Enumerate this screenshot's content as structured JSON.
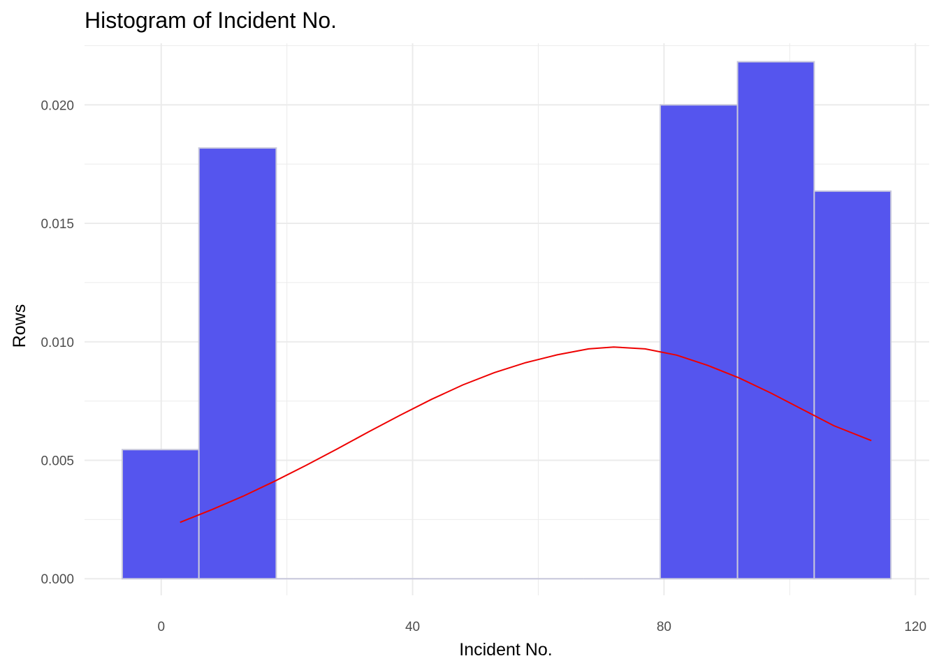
{
  "chart_data": {
    "type": "bar",
    "title": "Histogram of Incident No.",
    "xlabel": "Incident No.",
    "ylabel": "Rows",
    "xlim": [
      -12.2,
      122.2
    ],
    "ylim": [
      -0.0007,
      0.0226
    ],
    "x_ticks": [
      0,
      40,
      80,
      120
    ],
    "x_tick_labels": [
      "0",
      "40",
      "80",
      "120"
    ],
    "x_minor_ticks": [
      20,
      60,
      100
    ],
    "y_ticks": [
      0.0,
      0.005,
      0.01,
      0.015,
      0.02
    ],
    "y_tick_labels": [
      "0.000",
      "0.005",
      "0.010",
      "0.015",
      "0.020"
    ],
    "y_minor_ticks": [
      0.0025,
      0.0075,
      0.0125,
      0.0175,
      0.0225
    ],
    "grid": true,
    "bins": [
      {
        "x0": -6.2,
        "x1": 6.0,
        "density": 0.00545
      },
      {
        "x0": 6.0,
        "x1": 18.3,
        "density": 0.01818
      },
      {
        "x0": 18.3,
        "x1": 30.5,
        "density": 0
      },
      {
        "x0": 30.5,
        "x1": 42.7,
        "density": 0
      },
      {
        "x0": 42.7,
        "x1": 55.0,
        "density": 0
      },
      {
        "x0": 55.0,
        "x1": 67.2,
        "density": 0
      },
      {
        "x0": 67.2,
        "x1": 79.4,
        "density": 0
      },
      {
        "x0": 79.4,
        "x1": 91.7,
        "density": 0.02
      },
      {
        "x0": 91.7,
        "x1": 103.9,
        "density": 0.02182
      },
      {
        "x0": 103.9,
        "x1": 116.1,
        "density": 0.01636
      }
    ],
    "density_curve": {
      "x": [
        3,
        8,
        13,
        18,
        23,
        28,
        33,
        38,
        43,
        48,
        53,
        58,
        63,
        68,
        72,
        77,
        82,
        87,
        92,
        97,
        102,
        107,
        113
      ],
      "y": [
        0.00238,
        0.00291,
        0.00348,
        0.00411,
        0.00478,
        0.00548,
        0.0062,
        0.0069,
        0.00757,
        0.00818,
        0.0087,
        0.00912,
        0.00945,
        0.0097,
        0.00978,
        0.0097,
        0.00944,
        0.009,
        0.00847,
        0.00784,
        0.00715,
        0.00646,
        0.00583
      ]
    },
    "colors": {
      "bar_fill": "#5555ee",
      "bar_stroke": "#c8c8dc",
      "curve": "#ee0000",
      "grid": "#ebebeb"
    }
  }
}
